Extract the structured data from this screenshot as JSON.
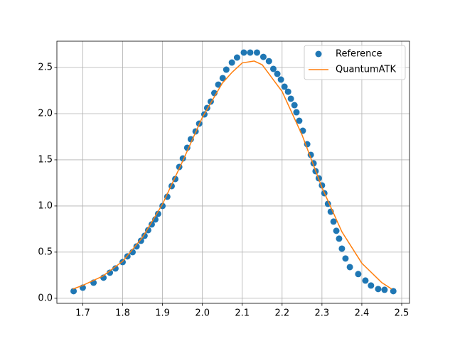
{
  "chart_data": {
    "type": "scatter_line",
    "xlim": [
      1.635,
      2.5196
    ],
    "ylim": [
      -0.055,
      2.785
    ],
    "xticks": [
      1.7,
      1.8,
      1.9,
      {
        "value": 2.0,
        "label": "2.0"
      },
      2.1,
      2.2,
      2.3,
      2.4,
      2.5
    ],
    "yticks": [
      {
        "value": 0.0,
        "label": "0.0"
      },
      0.5,
      {
        "value": 1.0,
        "label": "1.0"
      },
      1.5,
      {
        "value": 2.0,
        "label": "2.0"
      },
      2.5
    ],
    "grid": true,
    "legend": "upper right",
    "series": [
      {
        "name": "Reference",
        "color": "#1f77b4",
        "kind": "scatter",
        "x": [
          1.677,
          1.7,
          1.727,
          1.752,
          1.768,
          1.782,
          1.8,
          1.812,
          1.825,
          1.835,
          1.846,
          1.855,
          1.864,
          1.873,
          1.882,
          1.889,
          1.9,
          1.912,
          1.923,
          1.932,
          1.942,
          1.951,
          1.962,
          1.971,
          1.983,
          1.992,
          2.005,
          2.012,
          2.021,
          2.03,
          2.04,
          2.051,
          2.06,
          2.074,
          2.087,
          2.104,
          2.12,
          2.137,
          2.153,
          2.167,
          2.178,
          2.188,
          2.197,
          2.206,
          2.215,
          2.222,
          2.231,
          2.236,
          2.243,
          2.252,
          2.263,
          2.272,
          2.279,
          2.284,
          2.292,
          2.3,
          2.306,
          2.315,
          2.322,
          2.329,
          2.336,
          2.343,
          2.35,
          2.359,
          2.37,
          2.391,
          2.409,
          2.423,
          2.441,
          2.457,
          2.479
        ],
        "values": [
          0.077,
          0.115,
          0.169,
          0.223,
          0.277,
          0.323,
          0.392,
          0.454,
          0.5,
          0.562,
          0.623,
          0.677,
          0.738,
          0.8,
          0.854,
          0.915,
          1.0,
          1.1,
          1.215,
          1.292,
          1.423,
          1.515,
          1.631,
          1.723,
          1.808,
          1.892,
          1.992,
          2.062,
          2.131,
          2.223,
          2.315,
          2.385,
          2.477,
          2.554,
          2.608,
          2.662,
          2.662,
          2.662,
          2.615,
          2.569,
          2.485,
          2.431,
          2.369,
          2.292,
          2.238,
          2.162,
          2.092,
          2.015,
          1.923,
          1.815,
          1.669,
          1.554,
          1.462,
          1.377,
          1.3,
          1.223,
          1.138,
          1.023,
          0.938,
          0.831,
          0.731,
          0.646,
          0.538,
          0.431,
          0.338,
          0.262,
          0.192,
          0.138,
          0.1,
          0.092,
          0.077
        ]
      },
      {
        "name": "QuantumATK",
        "color": "#ff7f0e",
        "kind": "line",
        "x": [
          1.675,
          1.7,
          1.75,
          1.8,
          1.85,
          1.9,
          1.95,
          2.0,
          2.05,
          2.075,
          2.1,
          2.13,
          2.15,
          2.2,
          2.25,
          2.3,
          2.35,
          2.4,
          2.45,
          2.475
        ],
        "values": [
          0.1,
          0.14,
          0.24,
          0.4,
          0.66,
          1.02,
          1.48,
          1.96,
          2.33,
          2.45,
          2.55,
          2.57,
          2.53,
          2.24,
          1.77,
          1.2,
          0.72,
          0.38,
          0.17,
          0.1
        ]
      }
    ]
  }
}
